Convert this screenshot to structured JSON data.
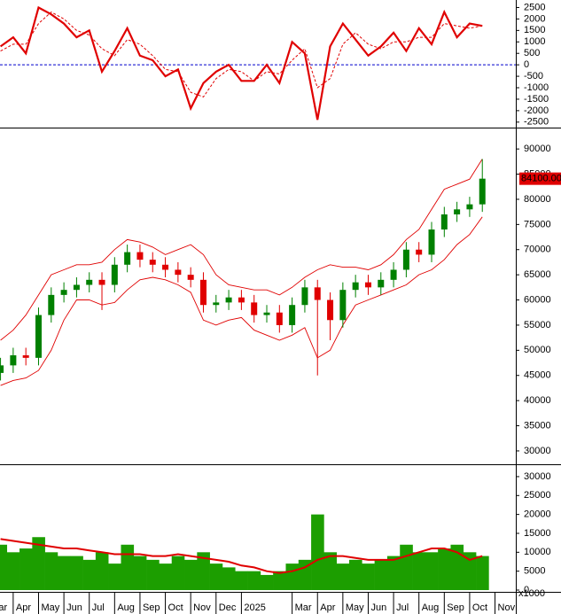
{
  "chart_data": [
    {
      "type": "line",
      "x": [
        0.5,
        1,
        1.5,
        2,
        2.5,
        3,
        3.5,
        4,
        4.5,
        5,
        5.5,
        6,
        6.5,
        7,
        7.5,
        8,
        8.5,
        9,
        9.5,
        10,
        10.5,
        11,
        11.5,
        12,
        12.5,
        13,
        13.5,
        14,
        14.5,
        15,
        15.5,
        16,
        16.5,
        17,
        17.5,
        18,
        18.5,
        19,
        19.5
      ],
      "xlim": [
        0.48,
        20.82
      ],
      "ylim": [
        -2700,
        2750
      ],
      "yticks": [
        2500,
        2000,
        1500,
        1000,
        500,
        0,
        -500,
        -1000,
        -1500,
        -2000,
        -2500
      ],
      "series": [
        {
          "color": "#e00000",
          "values": [
            800,
            1200,
            500,
            2500,
            2200,
            1800,
            1200,
            1500,
            -300,
            600,
            1600,
            400,
            200,
            -500,
            -200,
            -1900,
            -800,
            -300,
            0,
            -700,
            -700,
            0,
            -800,
            1000,
            500,
            -2400,
            800,
            1800,
            1100,
            400,
            800,
            1400,
            600,
            1600,
            900,
            2300,
            1200,
            1800,
            1700
          ]
        },
        {
          "color": "#e00000",
          "dashed": true,
          "values": [
            600,
            900,
            900,
            1800,
            2300,
            2000,
            1500,
            1300,
            700,
            400,
            1100,
            900,
            400,
            -200,
            -300,
            -1200,
            -1400,
            -600,
            -200,
            -300,
            -700,
            -300,
            -400,
            200,
            700,
            -1000,
            -600,
            900,
            1400,
            900,
            700,
            1000,
            1000,
            1200,
            1200,
            1800,
            1700,
            1600,
            1700
          ]
        }
      ]
    },
    {
      "type": "candlestick",
      "x": [
        0.5,
        1,
        1.5,
        2,
        2.5,
        3,
        3.5,
        4,
        4.5,
        5,
        5.5,
        6,
        6.5,
        7,
        7.5,
        8,
        8.5,
        9,
        9.5,
        10,
        10.5,
        11,
        11.5,
        12,
        12.5,
        13,
        13.5,
        14,
        14.5,
        15,
        15.5,
        16,
        16.5,
        17,
        17.5,
        18,
        18.5,
        19,
        19.5
      ],
      "xlim": [
        0.48,
        20.82
      ],
      "ylim": [
        27700,
        93900
      ],
      "yticks": [
        90000,
        85000,
        80000,
        75000,
        70000,
        65000,
        60000,
        55000,
        50000,
        45000,
        40000,
        35000,
        30000
      ],
      "up_color": "#008000",
      "down_color": "#e00000",
      "band_color": "#e00000",
      "open": [
        45500,
        47000,
        49000,
        48500,
        57000,
        61000,
        62000,
        63000,
        64000,
        63000,
        67000,
        69500,
        68000,
        67000,
        66000,
        65000,
        64000,
        59000,
        59500,
        60500,
        59500,
        57000,
        57500,
        55000,
        59000,
        62500,
        60000,
        56000,
        62000,
        63500,
        62500,
        64000,
        66000,
        70000,
        69000,
        74000,
        77000,
        78000,
        79000
      ],
      "high": [
        48500,
        50500,
        50500,
        58500,
        62500,
        63500,
        64500,
        65500,
        65500,
        68500,
        71000,
        71000,
        69500,
        68500,
        67500,
        66500,
        65500,
        61000,
        62000,
        62000,
        61000,
        59000,
        59000,
        60500,
        64000,
        64000,
        61500,
        63500,
        65000,
        65000,
        65500,
        67500,
        71500,
        71500,
        75500,
        78500,
        79500,
        80500,
        88000
      ],
      "low": [
        44000,
        45500,
        47000,
        47000,
        55500,
        59500,
        60500,
        61500,
        58000,
        61500,
        65500,
        66500,
        65500,
        64500,
        63500,
        62500,
        57500,
        57500,
        58000,
        58000,
        55500,
        55500,
        53500,
        53500,
        57500,
        45000,
        52000,
        54500,
        60500,
        61000,
        61000,
        62500,
        64500,
        67500,
        67500,
        72500,
        75500,
        76500,
        77500
      ],
      "close": [
        47000,
        49000,
        48500,
        57000,
        61000,
        62000,
        63000,
        64000,
        63000,
        67000,
        69500,
        68000,
        67000,
        66000,
        65000,
        64000,
        59000,
        59500,
        60500,
        59500,
        57000,
        57500,
        55000,
        59000,
        62500,
        60000,
        56000,
        62000,
        63500,
        62500,
        64000,
        66000,
        70000,
        69000,
        74000,
        77000,
        78000,
        79000,
        84100
      ],
      "upper_band": [
        52000,
        54000,
        57000,
        61000,
        65000,
        66000,
        67000,
        67000,
        67500,
        70000,
        72000,
        71500,
        70500,
        69000,
        70000,
        71000,
        69000,
        65000,
        63000,
        62500,
        62000,
        62000,
        61000,
        62500,
        64500,
        66000,
        67000,
        66500,
        66500,
        66000,
        67000,
        69000,
        72000,
        74000,
        78000,
        82000,
        83000,
        84000,
        88000
      ],
      "lower_band": [
        43000,
        44000,
        44500,
        46000,
        50000,
        56000,
        60000,
        60000,
        59000,
        59500,
        62000,
        64000,
        64500,
        64000,
        63000,
        61500,
        56000,
        55000,
        56000,
        56500,
        54000,
        53000,
        52000,
        53000,
        54500,
        48500,
        50000,
        55000,
        59000,
        60000,
        61000,
        62000,
        63000,
        65000,
        66000,
        68000,
        71000,
        73000,
        76500
      ],
      "last_price": {
        "value": 84100,
        "label": "84100.00"
      }
    },
    {
      "type": "bar",
      "x": [
        0.5,
        1,
        1.5,
        2,
        2.5,
        3,
        3.5,
        4,
        4.5,
        5,
        5.5,
        6,
        6.5,
        7,
        7.5,
        8,
        8.5,
        9,
        9.5,
        10,
        10.5,
        11,
        11.5,
        12,
        12.5,
        13,
        13.5,
        14,
        14.5,
        15,
        15.5,
        16,
        16.5,
        17,
        17.5,
        18,
        18.5,
        19,
        19.5
      ],
      "xlim": [
        0.48,
        20.82
      ],
      "xticks": [
        {
          "value": 0,
          "label": "Mar"
        },
        {
          "value": 1,
          "label": "Apr"
        },
        {
          "value": 2,
          "label": "May"
        },
        {
          "value": 3,
          "label": "Jun"
        },
        {
          "value": 4,
          "label": "Jul"
        },
        {
          "value": 5,
          "label": "Aug"
        },
        {
          "value": 6,
          "label": "Sep"
        },
        {
          "value": 7,
          "label": "Oct"
        },
        {
          "value": 8,
          "label": "Nov"
        },
        {
          "value": 9,
          "label": "Dec"
        },
        {
          "value": 10,
          "label": "2025"
        },
        {
          "value": 12,
          "label": "Mar"
        },
        {
          "value": 13,
          "label": "Apr"
        },
        {
          "value": 14,
          "label": "May"
        },
        {
          "value": 15,
          "label": "Jun"
        },
        {
          "value": 16,
          "label": "Jul"
        },
        {
          "value": 17,
          "label": "Aug"
        },
        {
          "value": 18,
          "label": "Sep"
        },
        {
          "value": 19,
          "label": "Oct"
        },
        {
          "value": 20,
          "label": "Nov"
        }
      ],
      "ylim": [
        0,
        32800
      ],
      "yticks": [
        30000,
        25000,
        20000,
        15000,
        10000,
        5000,
        0
      ],
      "unit_label": "x1000",
      "series": [
        {
          "color": "#1c9e00",
          "values": [
            12000,
            10000,
            11000,
            14000,
            10000,
            9000,
            9000,
            8000,
            10000,
            7000,
            12000,
            9000,
            8000,
            7000,
            9000,
            8000,
            10000,
            7000,
            6000,
            5000,
            5000,
            4000,
            5000,
            7000,
            8000,
            20000,
            10000,
            7000,
            8000,
            7000,
            8000,
            9000,
            12000,
            10000,
            10000,
            11000,
            12000,
            10000,
            9000
          ]
        },
        {
          "color": "#e00000",
          "line": true,
          "values": [
            13500,
            13000,
            12500,
            12000,
            11500,
            11000,
            11000,
            10500,
            10000,
            9500,
            9500,
            9500,
            9000,
            9000,
            9500,
            9000,
            8500,
            8000,
            7500,
            6500,
            6000,
            5000,
            4500,
            5000,
            6000,
            8000,
            9000,
            9000,
            8500,
            8000,
            8000,
            8000,
            9000,
            10000,
            11000,
            11000,
            10000,
            8000,
            9000
          ]
        }
      ]
    }
  ]
}
